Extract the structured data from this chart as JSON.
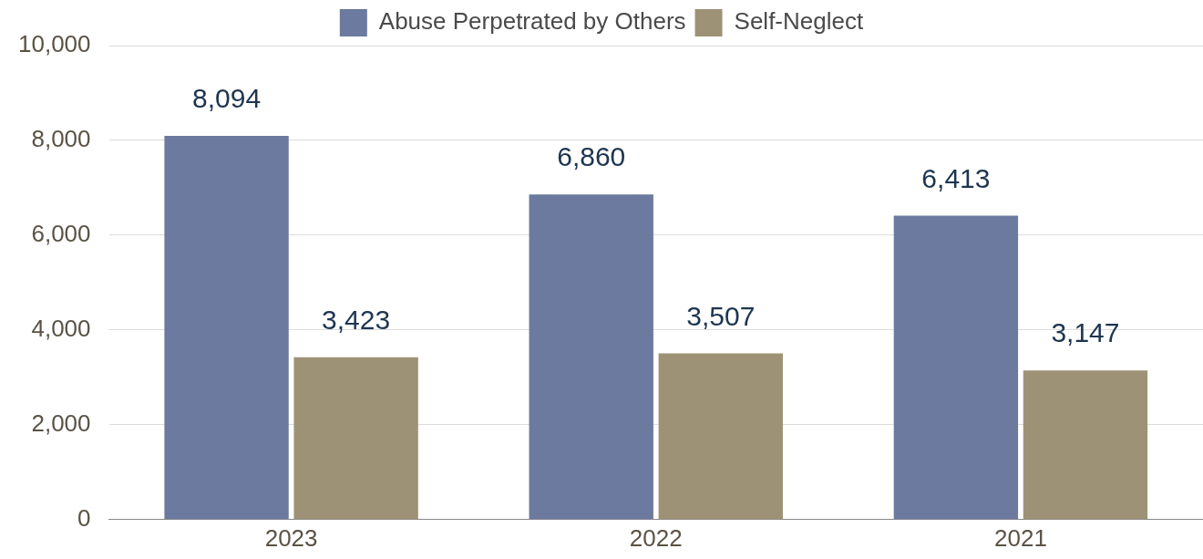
{
  "chart_data": {
    "type": "bar",
    "categories": [
      "2023",
      "2022",
      "2021"
    ],
    "series": [
      {
        "name": "Abuse Perpetrated by Others",
        "color": "#6b7a9e",
        "values": [
          8094,
          6860,
          6413
        ],
        "value_labels": [
          "8,094",
          "6,860",
          "6,413"
        ]
      },
      {
        "name": "Self-Neglect",
        "color": "#9e9276",
        "values": [
          3423,
          3507,
          3147
        ],
        "value_labels": [
          "3,423",
          "3,507",
          "3,147"
        ]
      }
    ],
    "ylim": [
      0,
      10000
    ],
    "yticks": [
      {
        "value": 0,
        "label": "0"
      },
      {
        "value": 2000,
        "label": "2,000"
      },
      {
        "value": 4000,
        "label": "4,000"
      },
      {
        "value": 6000,
        "label": "6,000"
      },
      {
        "value": 8000,
        "label": "8,000"
      },
      {
        "value": 10000,
        "label": "10,000"
      }
    ],
    "grid": "y",
    "legend": "top"
  }
}
